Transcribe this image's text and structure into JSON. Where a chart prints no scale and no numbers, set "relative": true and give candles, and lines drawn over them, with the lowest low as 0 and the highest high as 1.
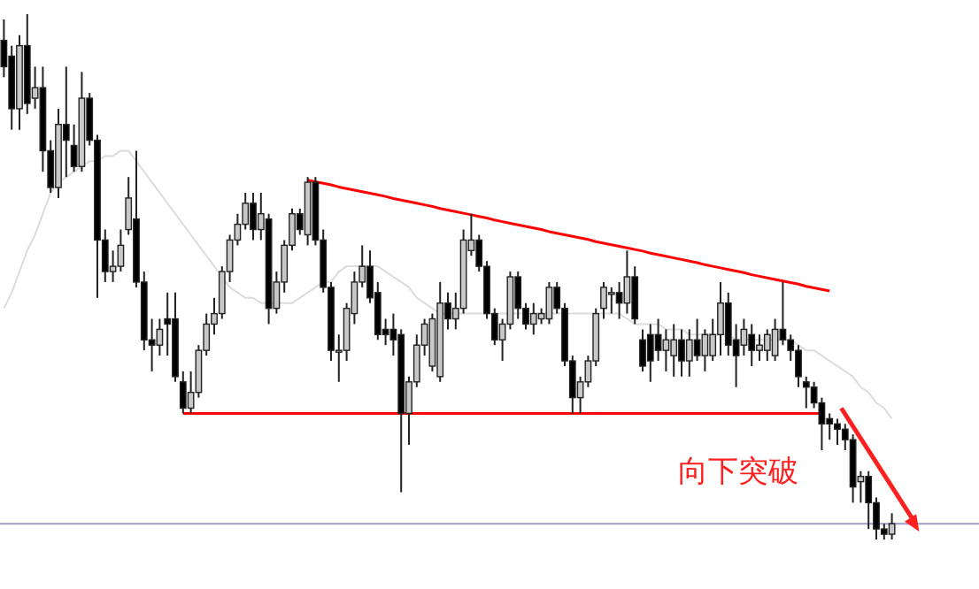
{
  "chart_data": {
    "type": "candlestick",
    "relative": true,
    "categories": [
      null,
      null,
      null,
      null,
      null,
      null,
      null,
      null,
      null,
      null,
      null,
      null,
      null,
      null,
      null,
      null,
      null,
      null,
      null,
      null,
      null,
      null,
      null,
      null,
      null,
      null,
      null,
      null,
      null,
      null,
      null,
      null,
      null,
      null,
      null,
      null,
      null,
      null,
      null,
      null,
      null,
      null,
      null,
      null,
      null,
      null,
      null,
      null,
      null,
      null,
      null,
      null,
      null,
      null,
      null,
      null,
      null,
      null,
      null,
      null,
      null,
      null,
      null,
      null,
      null,
      null,
      null,
      null,
      null,
      null,
      null,
      null,
      null,
      null,
      null,
      null,
      null,
      null,
      null,
      null,
      null,
      null,
      null,
      null,
      null,
      null,
      null,
      null,
      null,
      null,
      null,
      null,
      null,
      null,
      null,
      null,
      null,
      null,
      null,
      null,
      null,
      null,
      null,
      null,
      null,
      null,
      null,
      null,
      null,
      null,
      null,
      null,
      null,
      null,
      null
    ],
    "ohlc": [
      [
        0.95,
        0.99,
        0.88,
        0.9
      ],
      [
        0.92,
        0.94,
        0.78,
        0.82
      ],
      [
        0.82,
        0.96,
        0.78,
        0.94
      ],
      [
        0.94,
        1.0,
        0.81,
        0.83
      ],
      [
        0.84,
        0.9,
        0.82,
        0.86
      ],
      [
        0.86,
        0.9,
        0.7,
        0.74
      ],
      [
        0.74,
        0.76,
        0.66,
        0.67
      ],
      [
        0.67,
        0.82,
        0.65,
        0.79
      ],
      [
        0.79,
        0.9,
        0.69,
        0.76
      ],
      [
        0.75,
        0.79,
        0.7,
        0.71
      ],
      [
        0.71,
        0.89,
        0.7,
        0.84
      ],
      [
        0.84,
        0.85,
        0.75,
        0.76
      ],
      [
        0.76,
        0.77,
        0.46,
        0.57
      ],
      [
        0.57,
        0.59,
        0.49,
        0.51
      ],
      [
        0.51,
        0.55,
        0.49,
        0.52
      ],
      [
        0.52,
        0.59,
        0.51,
        0.56
      ],
      [
        0.59,
        0.69,
        0.58,
        0.65
      ],
      [
        0.61,
        0.74,
        0.48,
        0.49
      ],
      [
        0.49,
        0.51,
        0.36,
        0.38
      ],
      [
        0.38,
        0.42,
        0.32,
        0.37
      ],
      [
        0.37,
        0.42,
        0.35,
        0.4
      ],
      [
        0.42,
        0.47,
        0.35,
        0.41
      ],
      [
        0.42,
        0.47,
        0.3,
        0.31
      ],
      [
        0.3,
        0.32,
        0.24,
        0.25
      ],
      [
        0.25,
        0.32,
        0.24,
        0.28
      ],
      [
        0.28,
        0.37,
        0.27,
        0.36
      ],
      [
        0.36,
        0.43,
        0.35,
        0.41
      ],
      [
        0.41,
        0.46,
        0.39,
        0.43
      ],
      [
        0.43,
        0.52,
        0.42,
        0.51
      ],
      [
        0.51,
        0.58,
        0.49,
        0.57
      ],
      [
        0.57,
        0.62,
        0.56,
        0.6
      ],
      [
        0.6,
        0.66,
        0.59,
        0.64
      ],
      [
        0.64,
        0.66,
        0.57,
        0.59
      ],
      [
        0.59,
        0.66,
        0.57,
        0.62
      ],
      [
        0.61,
        0.62,
        0.41,
        0.44
      ],
      [
        0.44,
        0.51,
        0.43,
        0.49
      ],
      [
        0.49,
        0.57,
        0.47,
        0.56
      ],
      [
        0.56,
        0.63,
        0.55,
        0.62
      ],
      [
        0.62,
        0.63,
        0.58,
        0.59
      ],
      [
        0.58,
        0.69,
        0.56,
        0.68
      ],
      [
        0.68,
        0.69,
        0.56,
        0.57
      ],
      [
        0.57,
        0.59,
        0.47,
        0.48
      ],
      [
        0.48,
        0.49,
        0.34,
        0.36
      ],
      [
        0.36,
        0.39,
        0.3,
        0.36
      ],
      [
        0.36,
        0.45,
        0.34,
        0.44
      ],
      [
        0.43,
        0.51,
        0.41,
        0.49
      ],
      [
        0.49,
        0.56,
        0.48,
        0.52
      ],
      [
        0.52,
        0.55,
        0.45,
        0.46
      ],
      [
        0.47,
        0.49,
        0.38,
        0.39
      ],
      [
        0.4,
        0.42,
        0.37,
        0.39
      ],
      [
        0.4,
        0.43,
        0.35,
        0.38
      ],
      [
        0.39,
        0.4,
        0.09,
        0.24
      ],
      [
        0.24,
        0.31,
        0.18,
        0.3
      ],
      [
        0.3,
        0.39,
        0.29,
        0.37
      ],
      [
        0.37,
        0.42,
        0.35,
        0.41
      ],
      [
        0.33,
        0.43,
        0.32,
        0.42
      ],
      [
        0.31,
        0.49,
        0.3,
        0.45
      ],
      [
        0.45,
        0.47,
        0.4,
        0.42
      ],
      [
        0.42,
        0.47,
        0.4,
        0.44
      ],
      [
        0.44,
        0.59,
        0.43,
        0.57
      ],
      [
        0.55,
        0.62,
        0.54,
        0.57
      ],
      [
        0.57,
        0.58,
        0.51,
        0.52
      ],
      [
        0.52,
        0.53,
        0.42,
        0.43
      ],
      [
        0.43,
        0.44,
        0.37,
        0.38
      ],
      [
        0.38,
        0.42,
        0.34,
        0.41
      ],
      [
        0.41,
        0.51,
        0.4,
        0.5
      ],
      [
        0.5,
        0.51,
        0.42,
        0.44
      ],
      [
        0.44,
        0.45,
        0.4,
        0.41
      ],
      [
        0.41,
        0.45,
        0.39,
        0.43
      ],
      [
        0.42,
        0.44,
        0.41,
        0.43
      ],
      [
        0.42,
        0.49,
        0.41,
        0.48
      ],
      [
        0.48,
        0.49,
        0.43,
        0.44
      ],
      [
        0.44,
        0.45,
        0.33,
        0.34
      ],
      [
        0.34,
        0.35,
        0.24,
        0.27
      ],
      [
        0.27,
        0.31,
        0.24,
        0.3
      ],
      [
        0.3,
        0.35,
        0.29,
        0.34
      ],
      [
        0.34,
        0.44,
        0.33,
        0.43
      ],
      [
        0.44,
        0.49,
        0.42,
        0.48
      ],
      [
        0.47,
        0.48,
        0.43,
        0.47
      ],
      [
        0.47,
        0.49,
        0.42,
        0.45
      ],
      [
        0.45,
        0.55,
        0.43,
        0.5
      ],
      [
        0.5,
        0.52,
        0.41,
        0.42
      ],
      [
        0.38,
        0.4,
        0.32,
        0.33
      ],
      [
        0.39,
        0.41,
        0.3,
        0.34
      ],
      [
        0.39,
        0.42,
        0.34,
        0.36
      ],
      [
        0.36,
        0.4,
        0.32,
        0.38
      ],
      [
        0.35,
        0.41,
        0.31,
        0.38
      ],
      [
        0.38,
        0.4,
        0.31,
        0.34
      ],
      [
        0.34,
        0.4,
        0.31,
        0.38
      ],
      [
        0.38,
        0.42,
        0.34,
        0.35
      ],
      [
        0.35,
        0.4,
        0.32,
        0.39
      ],
      [
        0.35,
        0.42,
        0.34,
        0.39
      ],
      [
        0.39,
        0.49,
        0.35,
        0.45
      ],
      [
        0.45,
        0.47,
        0.35,
        0.37
      ],
      [
        0.38,
        0.41,
        0.29,
        0.35
      ],
      [
        0.37,
        0.42,
        0.35,
        0.4
      ],
      [
        0.39,
        0.41,
        0.33,
        0.36
      ],
      [
        0.36,
        0.39,
        0.34,
        0.37
      ],
      [
        0.36,
        0.4,
        0.34,
        0.39
      ],
      [
        0.35,
        0.42,
        0.34,
        0.4
      ],
      [
        0.4,
        0.49,
        0.37,
        0.38
      ],
      [
        0.38,
        0.39,
        0.34,
        0.36
      ],
      [
        0.36,
        0.37,
        0.29,
        0.31
      ],
      [
        0.3,
        0.31,
        0.25,
        0.29
      ],
      [
        0.29,
        0.3,
        0.25,
        0.26
      ],
      [
        0.26,
        0.27,
        0.17,
        0.22
      ],
      [
        0.23,
        0.24,
        0.19,
        0.22
      ],
      [
        0.22,
        0.23,
        0.18,
        0.21
      ],
      [
        0.21,
        0.22,
        0.17,
        0.19
      ],
      [
        0.19,
        0.2,
        0.07,
        0.1
      ],
      [
        0.11,
        0.13,
        0.07,
        0.12
      ],
      [
        0.12,
        0.13,
        0.02,
        0.07
      ],
      [
        0.07,
        0.08,
        0.0,
        0.02
      ],
      [
        0.02,
        0.03,
        0.0,
        0.01
      ],
      [
        0.01,
        0.05,
        0.0,
        0.03
      ]
    ],
    "series": [
      {
        "type": "line",
        "color": "#dcdcdc",
        "values": [
          0.44,
          0.47,
          0.51,
          0.55,
          0.58,
          0.62,
          0.66,
          0.68,
          0.69,
          0.7,
          0.71,
          0.72,
          0.72,
          0.73,
          0.73,
          0.74,
          0.74,
          0.72,
          0.7,
          0.68,
          0.66,
          0.64,
          0.62,
          0.6,
          0.58,
          0.56,
          0.54,
          0.52,
          0.5,
          0.48,
          0.47,
          0.46,
          0.46,
          0.45,
          0.45,
          0.45,
          0.45,
          0.45,
          0.46,
          0.47,
          0.48,
          0.49,
          0.49,
          0.51,
          0.52,
          0.52,
          0.52,
          0.52,
          0.52,
          0.51,
          0.5,
          0.49,
          0.48,
          0.46,
          0.45,
          0.44,
          0.43,
          0.43,
          0.43,
          0.43,
          0.43,
          0.43,
          0.43,
          0.43,
          0.43,
          0.43,
          0.43,
          0.43,
          0.43,
          0.43,
          0.43,
          0.43,
          0.43,
          0.43,
          0.43,
          0.43,
          0.43,
          0.43,
          0.43,
          0.43,
          0.42,
          0.41,
          0.41,
          0.41,
          0.41,
          0.4,
          0.4,
          0.4,
          0.39,
          0.39,
          0.39,
          0.39,
          0.39,
          0.39,
          0.38,
          0.38,
          0.38,
          0.38,
          0.38,
          0.38,
          0.38,
          0.38,
          0.37,
          0.36,
          0.36,
          0.35,
          0.34,
          0.33,
          0.32,
          0.31,
          0.29,
          0.28,
          0.26,
          0.25,
          0.23
        ]
      },
      {
        "type": "line",
        "color": "#ff0000",
        "values": [
          null,
          null,
          null,
          null,
          null,
          null,
          null,
          null,
          null,
          null,
          null,
          null,
          null,
          null,
          null,
          null,
          null,
          null,
          null,
          null,
          null,
          null,
          null,
          null,
          null,
          null,
          null,
          null,
          null,
          null,
          null,
          null,
          null,
          null,
          null,
          null,
          null,
          null,
          null,
          0.684,
          0.681,
          0.678,
          0.675,
          0.671,
          0.668,
          0.665,
          0.662,
          0.659,
          0.656,
          0.653,
          0.649,
          0.646,
          0.643,
          0.64,
          0.637,
          0.634,
          0.63,
          0.627,
          0.624,
          0.621,
          0.618,
          0.615,
          0.612,
          0.608,
          0.605,
          0.602,
          0.599,
          0.596,
          0.593,
          0.59,
          0.586,
          0.583,
          0.58,
          0.577,
          0.574,
          0.571,
          0.567,
          0.564,
          0.561,
          0.558,
          0.555,
          0.552,
          0.549,
          0.545,
          0.542,
          0.539,
          0.536,
          0.533,
          0.53,
          0.527,
          0.523,
          0.52,
          0.517,
          0.514,
          0.511,
          0.508,
          0.504,
          0.501,
          0.498,
          0.495,
          0.492,
          0.489,
          0.486,
          0.482,
          0.479,
          0.476,
          0.473,
          null,
          null,
          null,
          null,
          null,
          null,
          null,
          null
        ]
      },
      {
        "type": "line",
        "color": "#ff0000",
        "values": [
          null,
          null,
          null,
          null,
          null,
          null,
          null,
          null,
          null,
          null,
          null,
          null,
          null,
          null,
          null,
          null,
          null,
          null,
          null,
          null,
          null,
          null,
          null,
          0.24,
          0.24,
          0.24,
          0.24,
          0.24,
          0.24,
          0.24,
          0.24,
          0.24,
          0.24,
          0.24,
          0.24,
          0.24,
          0.24,
          0.24,
          0.24,
          0.24,
          0.24,
          0.24,
          0.24,
          0.24,
          0.24,
          0.24,
          0.24,
          0.24,
          0.24,
          0.24,
          0.24,
          0.24,
          0.24,
          0.24,
          0.24,
          0.24,
          0.24,
          0.24,
          0.24,
          0.24,
          0.24,
          0.24,
          0.24,
          0.24,
          0.24,
          0.24,
          0.24,
          0.24,
          0.24,
          0.24,
          0.24,
          0.24,
          0.24,
          0.24,
          0.24,
          0.24,
          0.24,
          0.24,
          0.24,
          0.24,
          0.24,
          0.24,
          0.24,
          0.24,
          0.24,
          0.24,
          0.24,
          0.24,
          0.24,
          0.24,
          0.24,
          0.24,
          0.24,
          0.24,
          0.24,
          0.24,
          0.24,
          0.24,
          0.24,
          0.24,
          0.24,
          0.24,
          0.24,
          0.24,
          0.24,
          0.24,
          null,
          null,
          null,
          null,
          null,
          null,
          null,
          null,
          null
        ]
      }
    ],
    "ref_lines": [
      {
        "axis": "y",
        "value": 0.03,
        "color": "#a09cc4"
      }
    ],
    "annotations": [
      "向下突破"
    ]
  }
}
